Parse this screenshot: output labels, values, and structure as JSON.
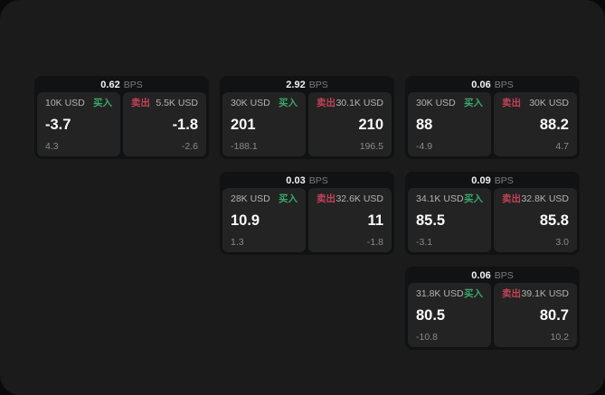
{
  "labels": {
    "bps": "BPS",
    "buy": "买入",
    "sell": "卖出"
  },
  "colors": {
    "buy": "#3aa76d",
    "sell": "#c24257",
    "window_bg": "#1b1b1b",
    "card_bg": "#111213",
    "panel_bg": "#232323"
  },
  "cards": [
    {
      "bps": "0.62",
      "buy": {
        "amount": "10K USD",
        "price": "-3.7",
        "delta": "4.3"
      },
      "sell": {
        "amount": "5.5K USD",
        "price": "-1.8",
        "delta": "-2.6"
      }
    },
    {
      "bps": "2.92",
      "buy": {
        "amount": "30K USD",
        "price": "201",
        "delta": "-188.1"
      },
      "sell": {
        "amount": "30.1K USD",
        "price": "210",
        "delta": "196.5"
      }
    },
    {
      "bps": "0.06",
      "buy": {
        "amount": "30K USD",
        "price": "88",
        "delta": "-4.9"
      },
      "sell": {
        "amount": "30K USD",
        "price": "88.2",
        "delta": "4.7"
      }
    },
    {
      "bps": "0.03",
      "buy": {
        "amount": "28K USD",
        "price": "10.9",
        "delta": "1.3"
      },
      "sell": {
        "amount": "32.6K USD",
        "price": "11",
        "delta": "-1.8"
      }
    },
    {
      "bps": "0.09",
      "buy": {
        "amount": "34.1K USD",
        "price": "85.5",
        "delta": "-3.1"
      },
      "sell": {
        "amount": "32.8K USD",
        "price": "85.8",
        "delta": "3.0"
      }
    },
    {
      "bps": "0.06",
      "buy": {
        "amount": "31.8K USD",
        "price": "80.5",
        "delta": "-10.8"
      },
      "sell": {
        "amount": "39.1K USD",
        "price": "80.7",
        "delta": "10.2"
      }
    }
  ]
}
